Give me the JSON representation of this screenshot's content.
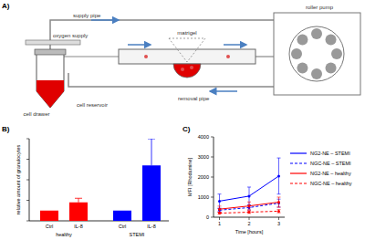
{
  "diagram": {
    "title": "A)",
    "labels": [
      "supply pipe",
      "oxygen supply",
      "cell drawer",
      "cell reservoir",
      "matrigel",
      "removal pipe",
      "roller pump"
    ]
  },
  "chart_data": [
    {
      "type": "bar",
      "title": "B)",
      "categories": [
        "Ctrl",
        "IL-8",
        "Ctrl",
        "IL-8"
      ],
      "groups": [
        "healthy",
        "STEMI"
      ],
      "values": [
        1,
        1.8,
        1,
        5.4
      ],
      "errors": [
        null,
        0.4,
        null,
        2.6
      ],
      "colors": [
        "#ff0000",
        "#ff0000",
        "#0000ff",
        "#0000ff"
      ],
      "y_label": "relative amount of granulocytes",
      "ylim": [
        0,
        8
      ],
      "yticks": [
        0,
        2,
        4,
        6,
        8
      ],
      "tick_labels": "x"
    },
    {
      "type": "line",
      "title": "C)",
      "x": [
        1,
        2,
        3
      ],
      "xlim": [
        0.8,
        3.2
      ],
      "xticks": [
        1,
        2,
        3
      ],
      "ylim": [
        0,
        4000
      ],
      "yticks": [
        0,
        1000,
        2000,
        3000,
        4000
      ],
      "x_label": "Time [hours]",
      "y_label": "MFI [Rhodamine]",
      "legend": "right",
      "marker": "circle",
      "series": [
        {
          "name": "NG2-NE – STEMI",
          "color": "#0000ff",
          "line_style": "solid",
          "values": [
            800,
            1050,
            2050
          ],
          "errors": [
            350,
            450,
            900
          ]
        },
        {
          "name": "NGC-NE – STEMI",
          "color": "#0000ff",
          "line_style": "dashed",
          "values": [
            350,
            480,
            700
          ],
          "errors": [
            80,
            120,
            200
          ]
        },
        {
          "name": "NG2-NE – healthy",
          "color": "#ff0000",
          "line_style": "solid",
          "values": [
            400,
            560,
            750
          ],
          "errors": [
            150,
            200,
            250
          ]
        },
        {
          "name": "NGC-NE – healthy",
          "color": "#ff0000",
          "line_style": "dashed",
          "values": [
            200,
            250,
            300
          ],
          "errors": [
            50,
            60,
            80
          ]
        }
      ]
    }
  ]
}
